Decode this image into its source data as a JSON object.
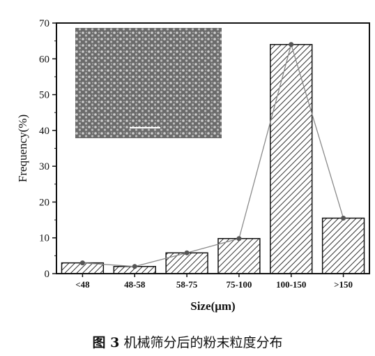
{
  "chart_data": {
    "type": "bar",
    "categories": [
      "<48",
      "48-58",
      "58-75",
      "75-100",
      "100-150",
      ">150"
    ],
    "values": [
      3,
      2,
      5.8,
      9.8,
      64,
      15.5
    ],
    "line_overlay": true,
    "ylabel": "Frequency(%)",
    "xlabel": "Size(μm)",
    "ylim": [
      0,
      70
    ],
    "yticks": [
      0,
      10,
      20,
      30,
      40,
      50,
      60,
      70
    ],
    "bar_pattern": "diagonal-hatch",
    "inset": "SEM micrograph of powder particles with scale bar"
  },
  "caption": {
    "fig_no": "图 3",
    "text": "机械筛分后的粉末粒度分布"
  },
  "colors": {
    "hatch": "#333333",
    "line": "#8a8a8a",
    "marker": "#555555",
    "inset_bg": "#6b6b6b",
    "inset_dot": "#c9c9c9"
  }
}
